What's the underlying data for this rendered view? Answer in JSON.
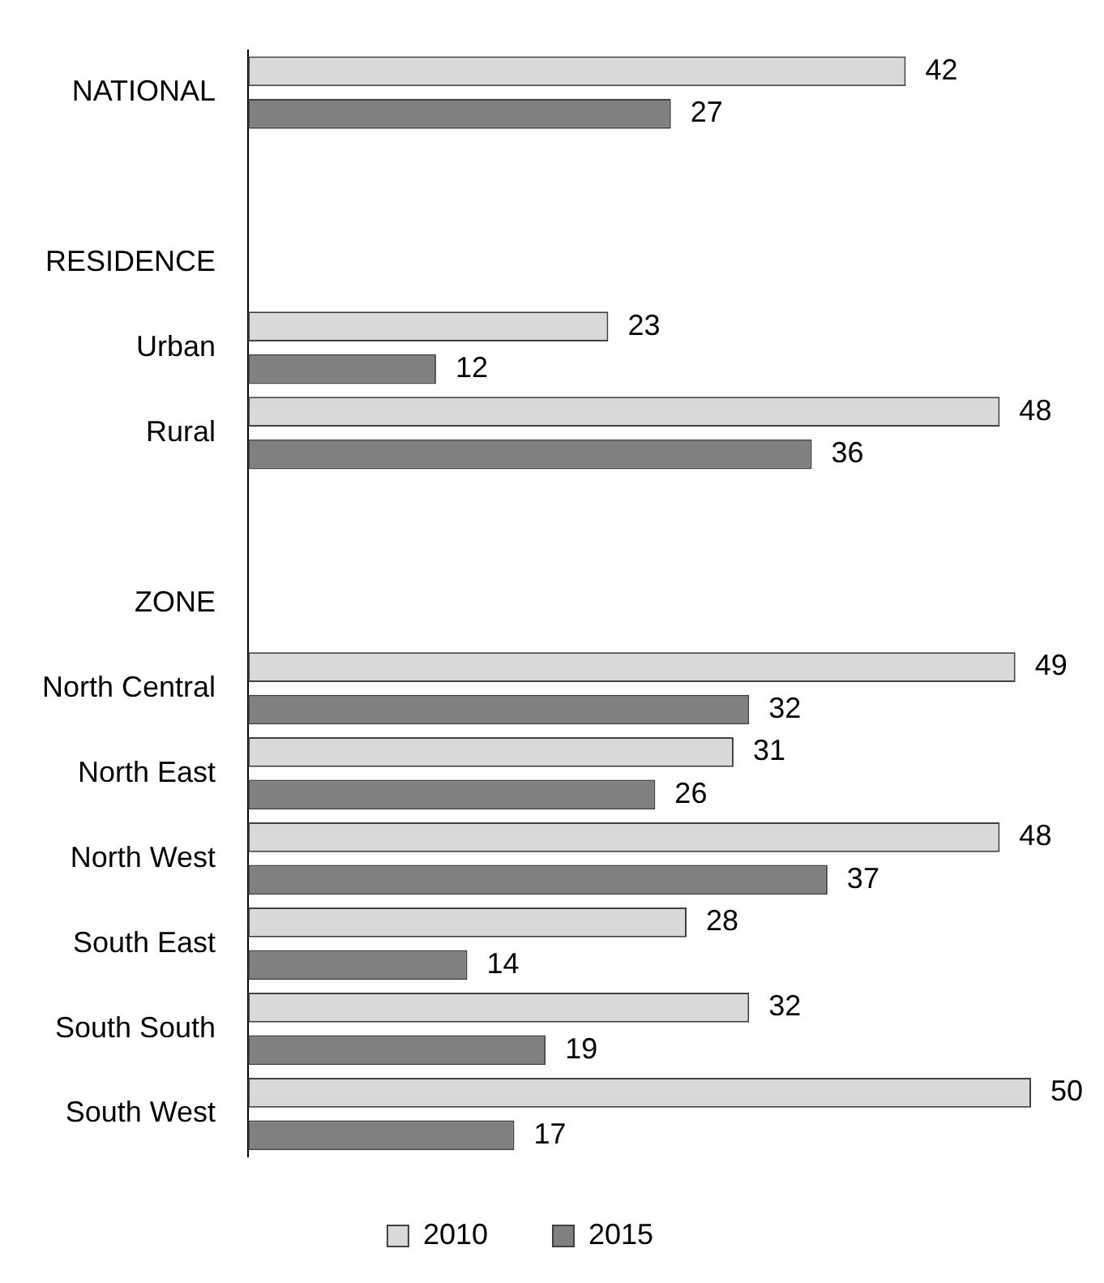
{
  "chart_data": {
    "type": "bar",
    "orientation": "horizontal",
    "categories": [
      "NATIONAL",
      null,
      "RESIDENCE",
      "Urban",
      "Rural",
      null,
      "ZONE",
      "North Central",
      "North East",
      "North West",
      "South East",
      "South South",
      "South West"
    ],
    "series": [
      {
        "name": "2010",
        "color": "#d9d9d9",
        "values": [
          42,
          null,
          null,
          23,
          48,
          null,
          null,
          49,
          31,
          48,
          28,
          32,
          50
        ]
      },
      {
        "name": "2015",
        "color": "#808080",
        "values": [
          27,
          null,
          null,
          12,
          36,
          null,
          null,
          32,
          26,
          37,
          14,
          19,
          17
        ]
      }
    ],
    "data_labels": true,
    "grid": false,
    "legend": "bottom"
  }
}
